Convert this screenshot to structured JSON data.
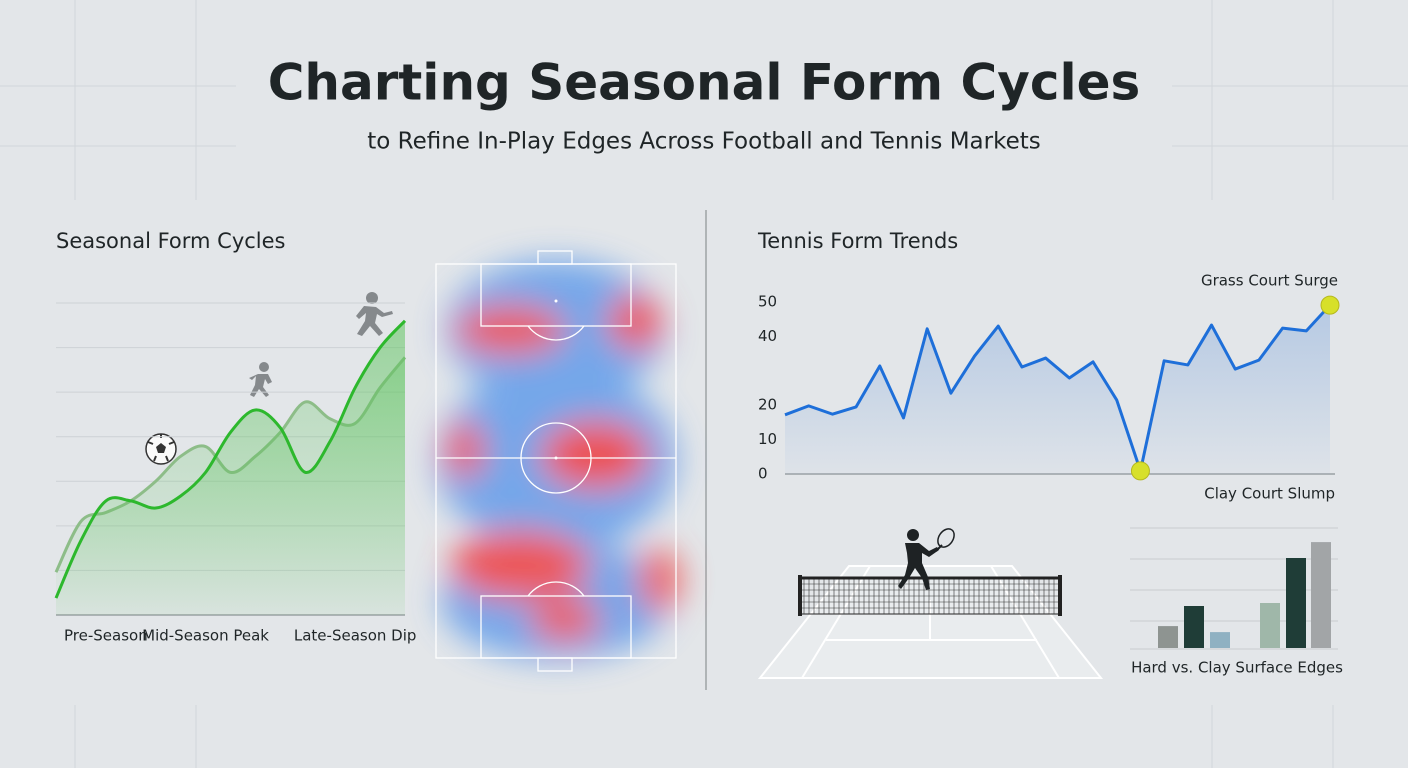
{
  "header": {
    "title": "Charting Seasonal Form Cycles",
    "subtitle": "to Refine In-Play Edges Across Football and Tennis Markets"
  },
  "chart_data": [
    {
      "type": "line",
      "title": "Seasonal Form Cycles",
      "categories": [
        null,
        null,
        "Pre-Season",
        null,
        null,
        null,
        "Mid-Season Peak",
        null,
        null,
        null,
        null,
        null,
        "Late-Season Dip",
        null,
        null
      ],
      "series": [
        {
          "color": "#2db82d",
          "values": [
            3.8,
            16.7,
            25.6,
            25.6,
            24,
            26.7,
            32,
            41,
            46,
            42,
            32,
            39,
            51,
            60,
            66
          ]
        },
        {
          "color": "#8dbd88",
          "values": [
            9.6,
            21,
            23,
            25.6,
            30,
            35.6,
            37.8,
            32,
            35.6,
            41,
            47.8,
            44,
            43,
            51,
            57.8
          ]
        }
      ],
      "ylim": [
        0,
        70
      ],
      "grid": true
    },
    {
      "type": "line",
      "title": "Tennis Form Trends",
      "categories": [
        null,
        null,
        null,
        null,
        null,
        null,
        null,
        null,
        null,
        null,
        null,
        null,
        null,
        null,
        null,
        null,
        null,
        null,
        null,
        null,
        null,
        null,
        null,
        null
      ],
      "series": [
        {
          "color": "#1e6fd9",
          "values": [
            17.2,
            19.8,
            17.4,
            19.5,
            31.4,
            16.3,
            42.2,
            23.5,
            34.3,
            43,
            31.1,
            33.7,
            27.9,
            32.6,
            21.5,
            0.9,
            32.9,
            31.7,
            43.3,
            30.5,
            33.1,
            42.4,
            41.6,
            49.1
          ]
        }
      ],
      "ylim": [
        0,
        50
      ],
      "yticks": [
        50,
        40,
        20,
        10,
        0
      ],
      "annotations": [
        "Grass Court Surge",
        "Clay Court Slump"
      ]
    },
    {
      "type": "bar",
      "title": "Hard vs. Clay Surface Edges",
      "categories": [
        null,
        null,
        null,
        null,
        null,
        null
      ],
      "values": [
        0.73,
        1.4,
        0.53,
        1.5,
        3.0,
        3.53
      ],
      "colors": [
        "#8e9491",
        "#1f3d37",
        "#8fb1c2",
        "#9fb7a9",
        "#1f3d37",
        "#a2a5a7"
      ],
      "ylim": [
        0,
        4
      ]
    }
  ]
}
